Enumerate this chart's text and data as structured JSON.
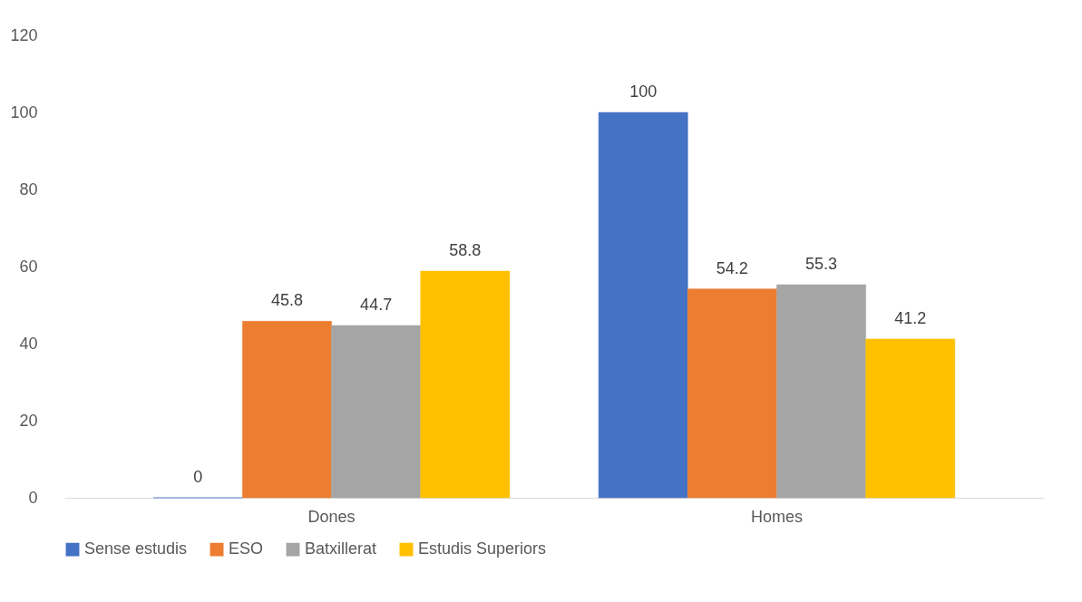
{
  "chart_data": {
    "type": "bar",
    "categories": [
      "Dones",
      "Homes"
    ],
    "series": [
      {
        "name": "Sense estudis",
        "color": "#4472c4",
        "values": [
          0,
          100
        ]
      },
      {
        "name": "ESO",
        "color": "#ed7d31",
        "values": [
          45.8,
          54.2
        ]
      },
      {
        "name": "Batxillerat",
        "color": "#a5a5a5",
        "values": [
          44.7,
          55.3
        ]
      },
      {
        "name": "Estudis Superiors",
        "color": "#ffc000",
        "values": [
          58.8,
          41.2
        ]
      }
    ],
    "ylim": [
      0,
      120
    ],
    "yticks": [
      0,
      20,
      40,
      60,
      80,
      100,
      120
    ],
    "data_labels": true,
    "legend": "bottom"
  }
}
